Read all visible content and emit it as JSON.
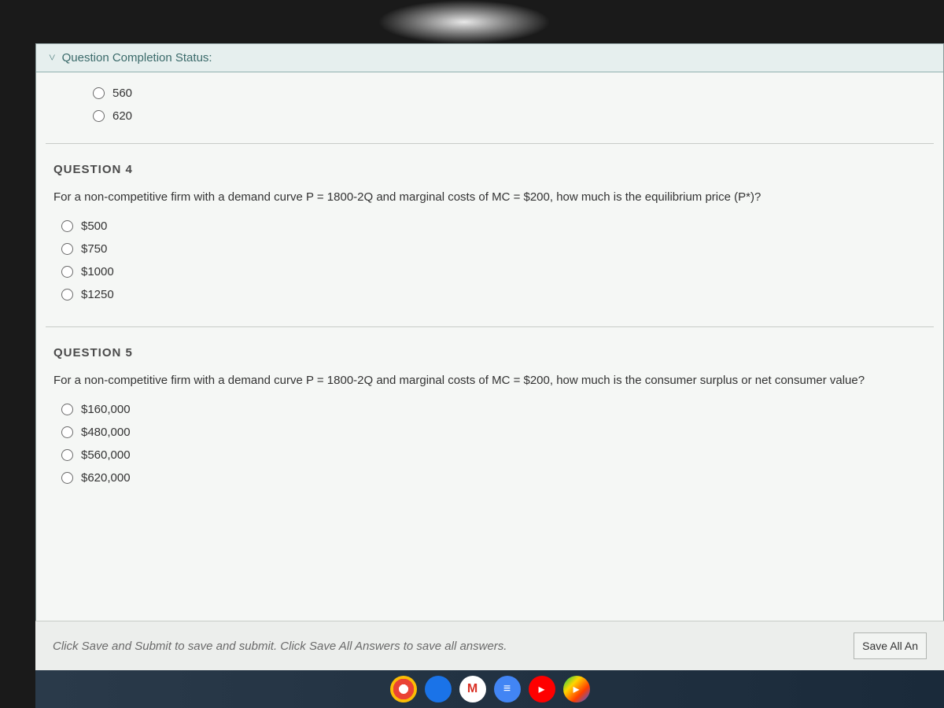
{
  "status_bar": {
    "label": "Question Completion Status:"
  },
  "question_partial": {
    "options": [
      {
        "label": "560"
      },
      {
        "label": "620"
      }
    ]
  },
  "question4": {
    "title": "QUESTION 4",
    "text": "For a non-competitive firm with a demand curve P = 1800-2Q and marginal costs of MC = $200, how much is the equilibrium price (P*)?",
    "options": [
      {
        "label": "$500"
      },
      {
        "label": "$750"
      },
      {
        "label": "$1000"
      },
      {
        "label": "$1250"
      }
    ]
  },
  "question5": {
    "title": "QUESTION 5",
    "text": "For a non-competitive firm with a demand curve P = 1800-2Q and marginal costs of MC = $200, how much is the consumer surplus or net consumer value?",
    "options": [
      {
        "label": "$160,000"
      },
      {
        "label": "$480,000"
      },
      {
        "label": "$560,000"
      },
      {
        "label": "$620,000"
      }
    ]
  },
  "footer": {
    "hint": "Click Save and Submit to save and submit. Click Save All Answers to save all answers.",
    "save_button": "Save All An"
  },
  "taskbar": {
    "gmail_letter": "M",
    "docs_glyph": "≡",
    "yt_glyph": "▸",
    "play_glyph": "▸"
  },
  "colors": {
    "page_bg": "#f5f7f5",
    "status_bg": "#e6efee",
    "status_text": "#3a6a6a",
    "border": "#c8ccc8",
    "text": "#333333",
    "radio_border": "#6a6a6a",
    "footer_text": "#6a6a6a",
    "taskbar_bg": "#1a2a3a"
  }
}
